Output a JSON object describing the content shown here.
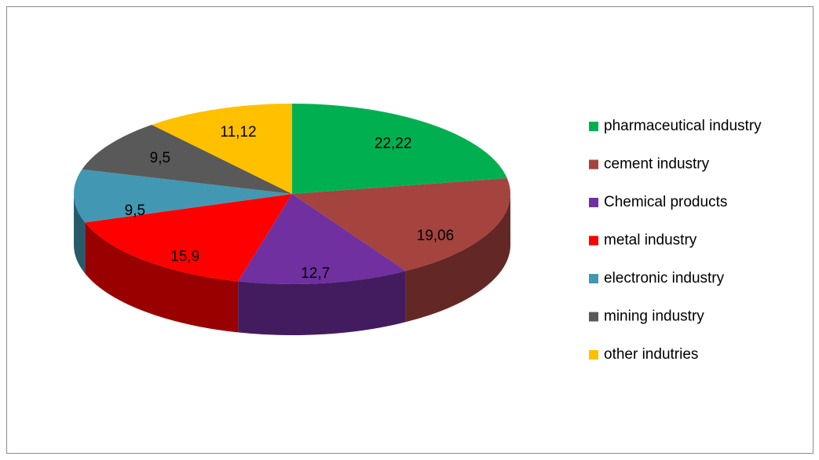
{
  "chart_data": {
    "type": "pie",
    "categories": [
      "pharmaceutical industry",
      "cement industry",
      "Chemical products",
      "metal industry",
      "electronic industry",
      "mining industry",
      "other indutries"
    ],
    "values": [
      22.22,
      19.06,
      12.7,
      15.9,
      9.5,
      9.5,
      11.12
    ],
    "value_labels": [
      "22,22",
      "19,06",
      "12,7",
      "15,9",
      "9,5",
      "9,5",
      "11,12"
    ],
    "colors": [
      "#00b050",
      "#a5433f",
      "#7030a0",
      "#ff0000",
      "#4298b2",
      "#595959",
      "#ffc000"
    ],
    "legend": "right"
  }
}
